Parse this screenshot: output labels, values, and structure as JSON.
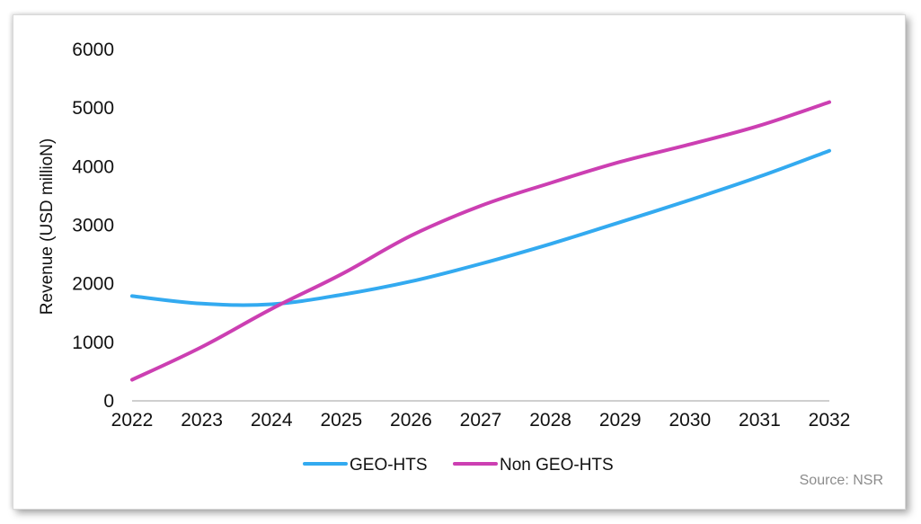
{
  "chart_data": {
    "type": "line",
    "title": "",
    "xlabel": "",
    "ylabel": "Revenue (USD millioN)",
    "categories": [
      "2022",
      "2023",
      "2024",
      "2025",
      "2026",
      "2027",
      "2028",
      "2029",
      "2030",
      "2031",
      "2032"
    ],
    "yticks": [
      "0",
      "1000",
      "2000",
      "3000",
      "4000",
      "5000",
      "6000"
    ],
    "ylim": [
      0,
      6000
    ],
    "grid": false,
    "legend_position": "bottom",
    "series": [
      {
        "name": "GEO-HTS",
        "color": "#33aaf0",
        "values": [
          1790,
          1660,
          1650,
          1810,
          2040,
          2340,
          2680,
          3050,
          3430,
          3830,
          4270
        ]
      },
      {
        "name": "Non GEO-HTS",
        "color": "#cc3fb2",
        "values": [
          360,
          920,
          1570,
          2160,
          2820,
          3330,
          3720,
          4080,
          4380,
          4700,
          5100
        ]
      }
    ],
    "source": "Source: NSR"
  }
}
